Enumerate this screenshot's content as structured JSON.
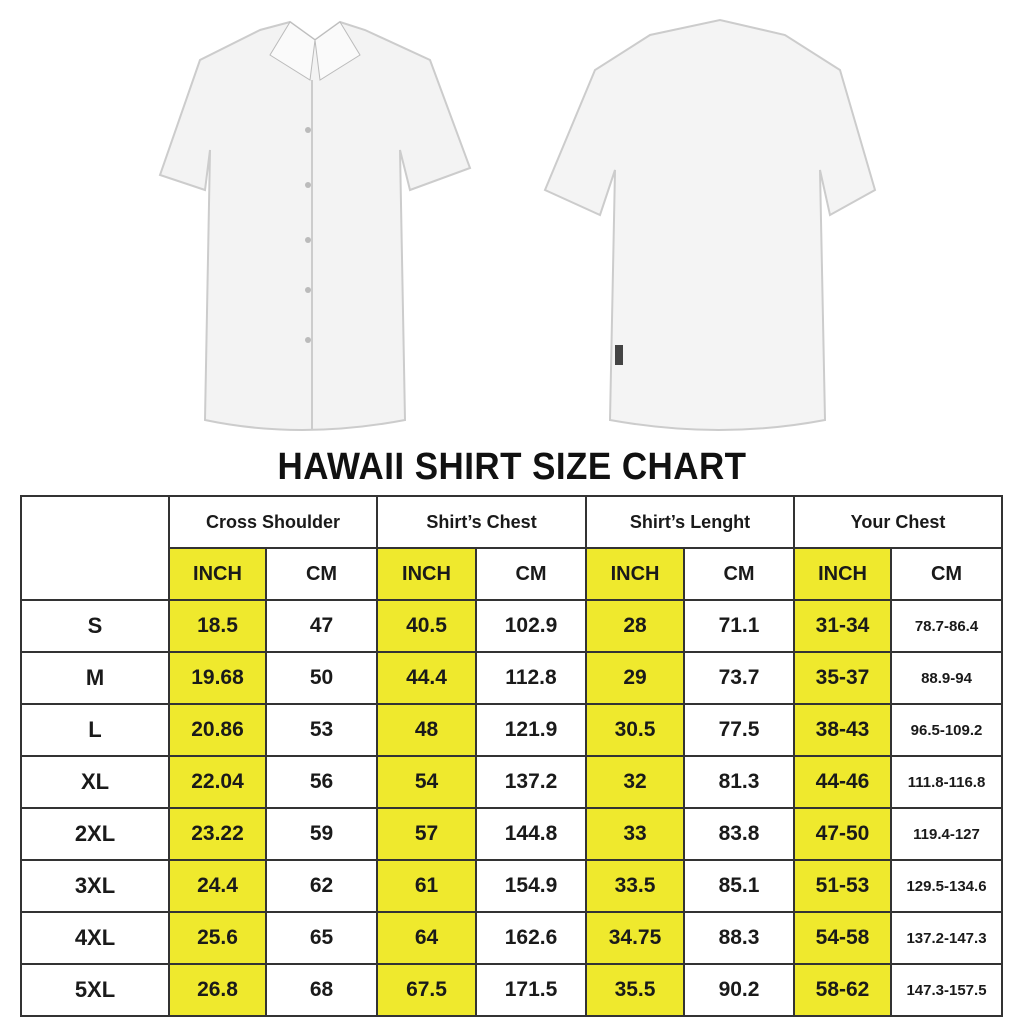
{
  "title": "HAWAII SHIRT SIZE CHART",
  "colors": {
    "highlight": "#efe92d",
    "border": "#333333"
  },
  "groups": [
    "Cross Shoulder",
    "Shirt’s Chest",
    "Shirt’s Lenght",
    "Your Chest"
  ],
  "units": {
    "inch": "INCH",
    "cm": "CM"
  },
  "rows": [
    {
      "size": "S",
      "v": [
        "18.5",
        "47",
        "40.5",
        "102.9",
        "28",
        "71.1",
        "31-34",
        "78.7-86.4"
      ]
    },
    {
      "size": "M",
      "v": [
        "19.68",
        "50",
        "44.4",
        "112.8",
        "29",
        "73.7",
        "35-37",
        "88.9-94"
      ]
    },
    {
      "size": "L",
      "v": [
        "20.86",
        "53",
        "48",
        "121.9",
        "30.5",
        "77.5",
        "38-43",
        "96.5-109.2"
      ]
    },
    {
      "size": "XL",
      "v": [
        "22.04",
        "56",
        "54",
        "137.2",
        "32",
        "81.3",
        "44-46",
        "111.8-116.8"
      ]
    },
    {
      "size": "2XL",
      "v": [
        "23.22",
        "59",
        "57",
        "144.8",
        "33",
        "83.8",
        "47-50",
        "119.4-127"
      ]
    },
    {
      "size": "3XL",
      "v": [
        "24.4",
        "62",
        "61",
        "154.9",
        "33.5",
        "85.1",
        "51-53",
        "129.5-134.6"
      ]
    },
    {
      "size": "4XL",
      "v": [
        "25.6",
        "65",
        "64",
        "162.6",
        "34.75",
        "88.3",
        "54-58",
        "137.2-147.3"
      ]
    },
    {
      "size": "5XL",
      "v": [
        "26.8",
        "68",
        "67.5",
        "171.5",
        "35.5",
        "90.2",
        "58-62",
        "147.3-157.5"
      ]
    }
  ]
}
